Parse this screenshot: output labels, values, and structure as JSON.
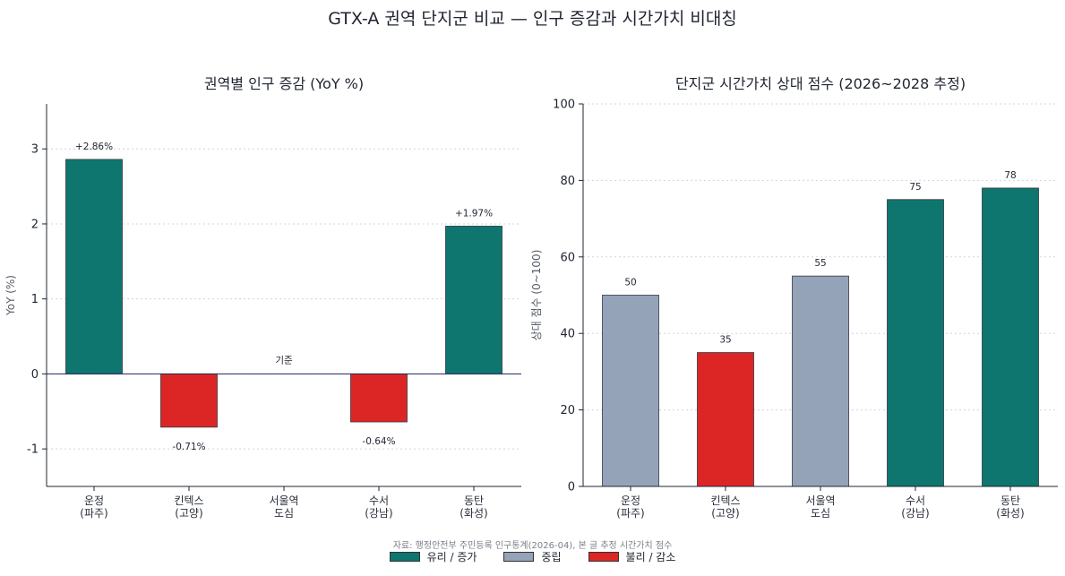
{
  "suptitle": "GTX-A 권역 단지군 비교 — 인구 증감과 시간가치 비대칭",
  "source": "자료: 행정안전부 주민등록 인구통계(2026-04), 본 글 추정 시간가치 점수",
  "colors": {
    "favorable": "#0e766e",
    "neutral": "#94a3b8",
    "unfavorable": "#dc2626",
    "grid": "#d0d4da",
    "axis": "#1f2430"
  },
  "legend": [
    {
      "label": "유리 / 증가",
      "color": "#0e766e"
    },
    {
      "label": "중립",
      "color": "#94a3b8"
    },
    {
      "label": "불리 / 감소",
      "color": "#dc2626"
    }
  ],
  "chart_data": [
    {
      "type": "bar",
      "title": "권역별 인구 증감 (YoY %)",
      "xlabel": "",
      "ylabel": "YoY (%)",
      "categories": [
        [
          "운정",
          "(파주)"
        ],
        [
          "킨텍스",
          "(고양)"
        ],
        [
          "서울역",
          "도심"
        ],
        [
          "수서",
          "(강남)"
        ],
        [
          "동탄",
          "(화성)"
        ]
      ],
      "values": [
        2.86,
        -0.71,
        0,
        -0.64,
        1.97
      ],
      "labels": [
        "+2.86%",
        "-0.71%",
        "기준",
        "-0.64%",
        "+1.97%"
      ],
      "colors": [
        "#0e766e",
        "#dc2626",
        "#94a3b8",
        "#dc2626",
        "#0e766e"
      ],
      "ylim": [
        -1.5,
        3.6
      ],
      "yticks": [
        -1,
        0,
        1,
        2,
        3
      ],
      "grid": "y-dotted"
    },
    {
      "type": "bar",
      "title": "단지군 시간가치 상대 점수 (2026~2028 추정)",
      "xlabel": "",
      "ylabel": "상대 점수 (0~100)",
      "categories": [
        [
          "운정",
          "(파주)"
        ],
        [
          "킨텍스",
          "(고양)"
        ],
        [
          "서울역",
          "도심"
        ],
        [
          "수서",
          "(강남)"
        ],
        [
          "동탄",
          "(화성)"
        ]
      ],
      "values": [
        50,
        35,
        55,
        75,
        78
      ],
      "labels": [
        "50",
        "35",
        "55",
        "75",
        "78"
      ],
      "colors": [
        "#94a3b8",
        "#dc2626",
        "#94a3b8",
        "#0e766e",
        "#0e766e"
      ],
      "ylim": [
        0,
        100
      ],
      "yticks": [
        0,
        20,
        40,
        60,
        80,
        100
      ],
      "grid": "y-dotted"
    }
  ]
}
